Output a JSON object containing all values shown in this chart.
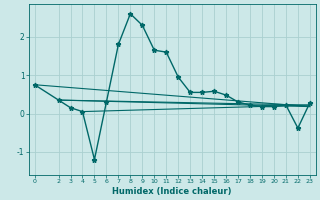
{
  "xlabel": "Humidex (Indice chaleur)",
  "bg_color": "#cce8e8",
  "grid_color": "#aad0d0",
  "line_color": "#006868",
  "xlim": [
    -0.5,
    23.5
  ],
  "ylim": [
    -1.6,
    2.85
  ],
  "xticks": [
    0,
    2,
    3,
    4,
    5,
    6,
    7,
    8,
    9,
    10,
    11,
    12,
    13,
    14,
    15,
    16,
    17,
    18,
    19,
    20,
    21,
    22,
    23
  ],
  "yticks": [
    -1,
    0,
    1,
    2
  ],
  "line1_x": [
    0,
    2,
    3,
    4,
    5,
    6,
    7,
    8,
    9,
    10,
    11,
    12,
    13,
    14,
    15,
    16,
    17,
    18,
    19,
    20,
    21,
    22,
    23
  ],
  "line1_y": [
    0.75,
    0.35,
    0.15,
    0.05,
    -1.2,
    0.3,
    1.8,
    2.6,
    2.3,
    1.65,
    1.6,
    0.95,
    0.55,
    0.55,
    0.58,
    0.48,
    0.3,
    0.22,
    0.18,
    0.18,
    0.22,
    -0.38,
    0.28
  ],
  "trend1_x": [
    0,
    23
  ],
  "trend1_y": [
    0.75,
    0.18
  ],
  "trend2_x": [
    2,
    23
  ],
  "trend2_y": [
    0.35,
    0.18
  ],
  "trend3_x": [
    2,
    23
  ],
  "trend3_y": [
    0.35,
    0.22
  ],
  "trend4_x": [
    4,
    23
  ],
  "trend4_y": [
    0.05,
    0.22
  ]
}
